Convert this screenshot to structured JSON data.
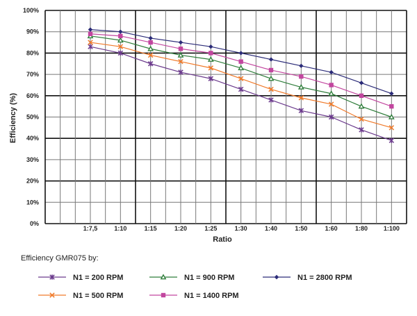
{
  "chart_data": {
    "type": "line",
    "title": "",
    "xlabel": "Ratio",
    "ylabel": "Efficiency (%)",
    "ylim": [
      0,
      100
    ],
    "yticks": [
      "0%",
      "10%",
      "20%",
      "30%",
      "40%",
      "50%",
      "60%",
      "70%",
      "80%",
      "90%",
      "100%"
    ],
    "categories": [
      "1:7,5",
      "1:10",
      "1:15",
      "1:20",
      "1:25",
      "1:30",
      "1:40",
      "1:50",
      "1:60",
      "1:80",
      "1:100"
    ],
    "grid": true,
    "legend_title": "Efficiency GMR075 by:",
    "legend_placement": "bottom",
    "series": [
      {
        "name": "N1 = 200  RPM",
        "marker": "star",
        "color": "#6b3a8c",
        "values": [
          83,
          80,
          75,
          71,
          68,
          63,
          58,
          53,
          50,
          44,
          39
        ]
      },
      {
        "name": "N1 = 500  RPM",
        "marker": "x",
        "color": "#f07a2a",
        "values": [
          85,
          83,
          79,
          76,
          73,
          68,
          63,
          59,
          56,
          49,
          45
        ]
      },
      {
        "name": "N1 = 900  RPM",
        "marker": "triangle",
        "color": "#2e7d3a",
        "values": [
          88,
          86,
          82,
          79,
          77,
          73,
          68,
          64,
          61,
          55,
          50
        ]
      },
      {
        "name": "N1 = 1400  RPM",
        "marker": "square",
        "color": "#c2469f",
        "values": [
          89,
          88,
          85,
          82,
          80,
          76,
          72,
          69,
          65,
          60,
          55
        ]
      },
      {
        "name": "N1 = 2800  RPM",
        "marker": "diamond",
        "color": "#2b2b78",
        "values": [
          91,
          90,
          87,
          85,
          83,
          80,
          77,
          74,
          71,
          66,
          61
        ]
      }
    ]
  }
}
